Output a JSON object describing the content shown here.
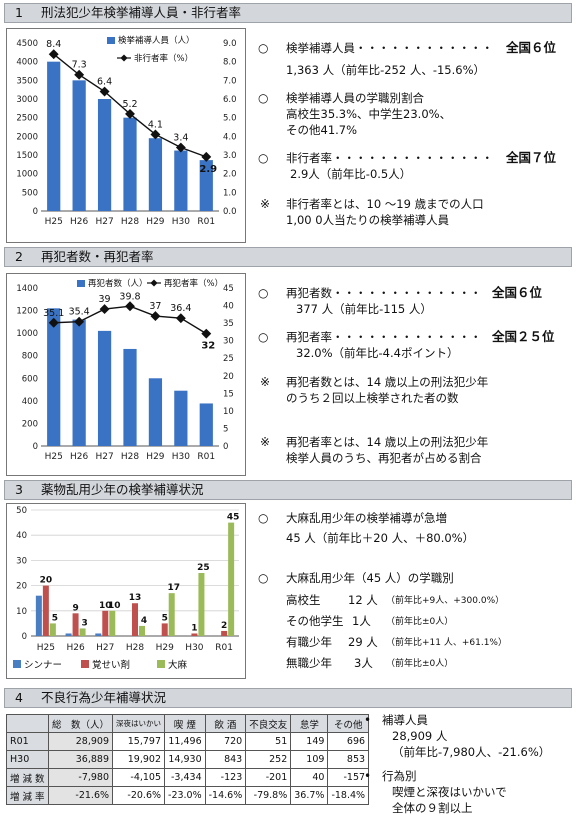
{
  "sections": [
    {
      "num": "1",
      "title": "刑法犯少年検挙補導人員・非行者率"
    },
    {
      "num": "2",
      "title": "再犯者数・再犯者率"
    },
    {
      "num": "3",
      "title": "薬物乱用少年の検挙補導状況"
    },
    {
      "num": "4",
      "title": "不良行為少年補導状況"
    }
  ],
  "s1": {
    "b1_label": "検挙補導人員・・・・・・・・・・・・",
    "b1_rank": "全国６位",
    "b1_detail": "1,363 人（前年比-252 人、-15.6%）",
    "b2_label": "検挙補導人員の学職別割合",
    "b2_line1": "高校生35.3%、中学生23.0%、",
    "b2_line2": "その他41.7%",
    "b3_label": "非行者率・・・・・・・・・・・・・・",
    "b3_rank": "全国７位",
    "b3_detail": "2.9人（前年比-0.5人）",
    "note_mark": "※",
    "note_line1": "非行者率とは、10 〜19 歳までの人口",
    "note_line2": "1,00 0人当たりの検挙補導人員"
  },
  "s2": {
    "b1_label": "再犯者数・・・・・・・・・・・・・",
    "b1_rank": "全国６位",
    "b1_detail": "377 人（前年比-115 人）",
    "b2_label": "再犯者率・・・・・・・・・・・・・",
    "b2_rank": "全国２５位",
    "b2_detail": "32.0%（前年比-4.4ポイント）",
    "note_mark": "※",
    "n1_line1": "再犯者数とは、14 歳以上の刑法犯少年",
    "n1_line2": "のうち２回以上検挙された者の数",
    "n2_line1": "再犯者率とは、14 歳以上の刑法犯少年",
    "n2_line2": "検挙人員のうち、再犯者が占める割合"
  },
  "s3": {
    "b1_label": "大麻乱用少年の検挙補導が急増",
    "b1_detail": "45 人（前年比＋20 人、＋80.0%）",
    "b2_label": "大麻乱用少年（45 人）の学職別",
    "rows": [
      {
        "label": "高校生",
        "count": "12 人",
        "note": "（前年比+9人、+300.0%）"
      },
      {
        "label": "その他学生",
        "count": "1人",
        "note": "（前年比±0人）"
      },
      {
        "label": "有職少年",
        "count": "29 人",
        "note": "（前年比+11 人、+61.1%）"
      },
      {
        "label": "無職少年",
        "count": "3人",
        "note": "（前年比±0人）"
      }
    ]
  },
  "s4": {
    "table": {
      "headers": [
        "",
        "総　数（人）",
        "深夜はいかい",
        "喫 煙",
        "飲 酒",
        "不良交友",
        "怠学",
        "その他"
      ],
      "rows": [
        {
          "label": "R01",
          "cells": [
            "28,909",
            "15,797",
            "11,496",
            "720",
            "51",
            "149",
            "696"
          ]
        },
        {
          "label": "H30",
          "cells": [
            "36,889",
            "19,902",
            "14,930",
            "843",
            "252",
            "109",
            "853"
          ]
        },
        {
          "label": "増 減 数",
          "cells": [
            "-7,980",
            "-4,105",
            "-3,434",
            "-123",
            "-201",
            "40",
            "-157"
          ]
        },
        {
          "label": "増 減 率",
          "cells": [
            "-21.6%",
            "-20.6%",
            "-23.0%",
            "-14.6%",
            "-79.8%",
            "36.7%",
            "-18.4%"
          ]
        }
      ]
    },
    "b1_label": "補導人員",
    "b1_line1": "28,909 人",
    "b1_line2": "（前年比-7,980人、-21.6%）",
    "b2_label": "行為別",
    "b2_line1": "喫煙と深夜はいかいで",
    "b2_line2": "全体の９割以上"
  },
  "chart_data": [
    {
      "type": "bar+line",
      "categories": [
        "H25",
        "H26",
        "H27",
        "H28",
        "H29",
        "H30",
        "R01"
      ],
      "series": [
        {
          "name": "検挙補導人員（人）",
          "kind": "bar",
          "axis": "left",
          "values": [
            4000,
            3500,
            3000,
            2500,
            1950,
            1620,
            1363
          ]
        },
        {
          "name": "非行者率（%）",
          "kind": "line",
          "axis": "right",
          "values": [
            8.4,
            7.3,
            6.4,
            5.2,
            4.1,
            3.4,
            2.9
          ],
          "labels": [
            "8.4",
            "7.3",
            "6.4",
            "5.2",
            "4.1",
            "3.4",
            "2.9"
          ]
        }
      ],
      "ylim_left": [
        0,
        4500
      ],
      "yticks_left": [
        "0",
        "500",
        "1000",
        "1500",
        "2000",
        "2500",
        "3000",
        "3500",
        "4000",
        "4500"
      ],
      "ylim_right": [
        0,
        9
      ],
      "yticks_right": [
        "0.0",
        "1.0",
        "2.0",
        "3.0",
        "4.0",
        "5.0",
        "6.0",
        "7.0",
        "8.0",
        "9.0"
      ],
      "legend": "top-right",
      "colors": {
        "bar": "#3a73c4",
        "line": "#111111"
      }
    },
    {
      "type": "bar+line",
      "categories": [
        "H25",
        "H26",
        "H27",
        "H28",
        "H29",
        "H30",
        "R01"
      ],
      "series": [
        {
          "name": "再犯者数（人）",
          "kind": "bar",
          "axis": "left",
          "values": [
            1220,
            1120,
            1020,
            860,
            600,
            490,
            377
          ]
        },
        {
          "name": "再犯者率（%）",
          "kind": "line",
          "axis": "right",
          "values": [
            35.1,
            35.4,
            39,
            39.8,
            37,
            36.4,
            32
          ],
          "labels": [
            "35.1",
            "35.4",
            "39",
            "39.8",
            "37",
            "36.4",
            "32"
          ]
        }
      ],
      "ylim_left": [
        0,
        1400
      ],
      "yticks_left": [
        "0",
        "200",
        "400",
        "600",
        "800",
        "1000",
        "1200",
        "1400"
      ],
      "ylim_right": [
        0,
        45
      ],
      "yticks_right": [
        "0",
        "5",
        "10",
        "15",
        "20",
        "25",
        "30",
        "35",
        "40",
        "45"
      ],
      "legend": "top",
      "colors": {
        "bar": "#3a73c4",
        "line": "#111111"
      }
    },
    {
      "type": "bar",
      "categories": [
        "H25",
        "H26",
        "H27",
        "H28",
        "H29",
        "H30",
        "R01"
      ],
      "series": [
        {
          "name": "シンナー",
          "values": [
            16,
            1,
            1,
            0,
            0,
            0,
            0
          ],
          "labels": [
            "",
            "",
            "",
            "",
            "",
            "",
            ""
          ],
          "color": "#4a7ec2"
        },
        {
          "name": "覚せい剤",
          "values": [
            20,
            9,
            10,
            13,
            5,
            1,
            2
          ],
          "labels": [
            "20",
            "9",
            "10",
            "13",
            "5",
            "1",
            "2"
          ],
          "color": "#c0504d"
        },
        {
          "name": "大麻",
          "values": [
            5,
            3,
            10,
            4,
            17,
            25,
            45
          ],
          "labels": [
            "5",
            "3",
            "10",
            "4",
            "17",
            "25",
            "45"
          ],
          "color": "#9bbb59"
        }
      ],
      "ylim": [
        0,
        50
      ],
      "yticks": [
        "0",
        "10",
        "20",
        "30",
        "40",
        "50"
      ],
      "legend": "bottom"
    }
  ]
}
